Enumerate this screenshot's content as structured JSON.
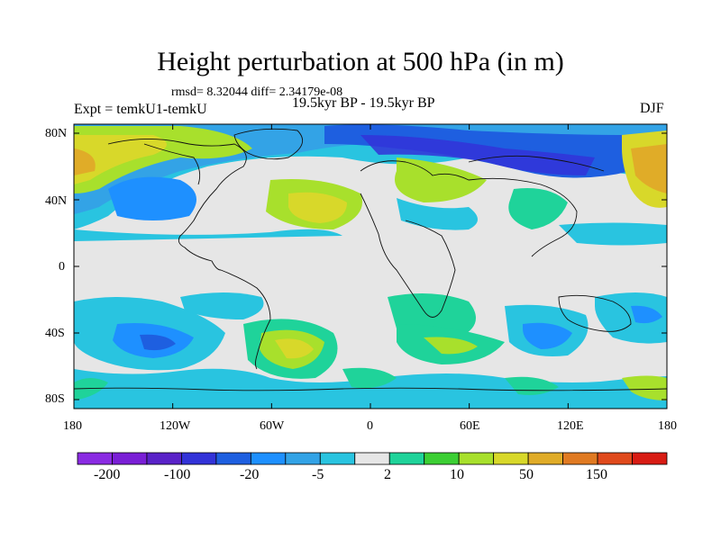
{
  "title": "Height perturbation at 500 hPa (in m)",
  "stats": "rmsd= 8.32044 diff= 2.34179e-08",
  "experiment": "Expt = temkU1-temkU",
  "period": "19.5kyr BP - 19.5kyr BP",
  "season": "DJF",
  "axes": {
    "lat_labels": [
      "80N",
      "40N",
      "0",
      "40S",
      "80S"
    ],
    "lon_labels": [
      "180",
      "120W",
      "60W",
      "0",
      "60E",
      "120E",
      "180"
    ]
  },
  "colorbar": {
    "colors": [
      "#8a2be2",
      "#7a1fd6",
      "#5a22c8",
      "#3333d8",
      "#1e5fe0",
      "#1e90ff",
      "#33a3e6",
      "#29c4e0",
      "#e6e6e6",
      "#1fd39a",
      "#3ccf34",
      "#a8e02c",
      "#d8d82a",
      "#e0ac28",
      "#e07a22",
      "#e04a1c",
      "#d81c14"
    ],
    "labels": [
      "-200",
      "-100",
      "-20",
      "-5",
      "2",
      "10",
      "50",
      "150"
    ]
  },
  "map_colors": {
    "ocean_base": "#e6e6e6",
    "coast": "#111111"
  }
}
